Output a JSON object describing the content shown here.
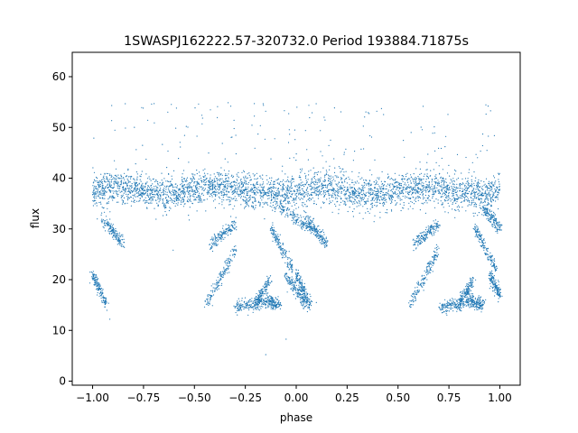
{
  "chart_data": {
    "type": "scatter",
    "title": "1SWASPJ162222.57-320732.0 Period 193884.71875s",
    "xlabel": "phase",
    "ylabel": "flux",
    "xlim": [
      -1.1,
      1.1
    ],
    "ylim": [
      -0.8,
      64.8
    ],
    "xticks": [
      -1.0,
      -0.75,
      -0.5,
      -0.25,
      0.0,
      0.25,
      0.5,
      0.75,
      1.0
    ],
    "xtick_labels": [
      "−1.00",
      "−0.75",
      "−0.50",
      "−0.25",
      "0.00",
      "0.25",
      "0.50",
      "0.75",
      "1.00"
    ],
    "yticks": [
      0,
      10,
      20,
      30,
      40,
      50,
      60
    ],
    "ytick_labels": [
      "0",
      "10",
      "20",
      "30",
      "40",
      "50",
      "60"
    ],
    "grid": false,
    "point_color": "#1f77b4",
    "marker_size_desc": "tiny dots",
    "description_components": [
      {
        "kind": "band",
        "x_range": [
          -1.0,
          1.0
        ],
        "y_center": 37.5,
        "y_spread": 3.0,
        "note": "dense main band; phase-folded and repeated over two cycles"
      },
      {
        "kind": "streak",
        "x": [
          -1.0,
          -0.93
        ],
        "y": [
          21,
          15
        ]
      },
      {
        "kind": "streak",
        "x": [
          -0.44,
          -0.3
        ],
        "y": [
          15,
          26
        ]
      },
      {
        "kind": "streak",
        "x": [
          -0.3,
          -0.15
        ],
        "y": [
          14.5,
          15.5
        ]
      },
      {
        "kind": "streak",
        "x": [
          -0.2,
          -0.13
        ],
        "y": [
          15,
          20
        ]
      },
      {
        "kind": "streak",
        "x": [
          -0.15,
          -0.08
        ],
        "y": [
          16,
          15
        ]
      },
      {
        "kind": "streak",
        "x": [
          -0.05,
          0.05
        ],
        "y": [
          21,
          15
        ]
      },
      {
        "kind": "streak",
        "x": [
          -0.12,
          -0.02
        ],
        "y": [
          30,
          22
        ]
      },
      {
        "kind": "streak",
        "x": [
          -0.42,
          -0.3
        ],
        "y": [
          27,
          31
        ]
      },
      {
        "kind": "streak",
        "x": [
          -0.95,
          -0.85
        ],
        "y": [
          32,
          27
        ]
      },
      {
        "kind": "streak",
        "x": [
          -0.08,
          0.08
        ],
        "y": [
          34,
          30
        ]
      },
      {
        "kind": "streak",
        "x": [
          0.0,
          0.07
        ],
        "y": [
          21,
          15
        ]
      },
      {
        "kind": "streak",
        "x": [
          0.56,
          0.7
        ],
        "y": [
          15,
          26
        ]
      },
      {
        "kind": "streak",
        "x": [
          0.7,
          0.85
        ],
        "y": [
          14.5,
          15.5
        ]
      },
      {
        "kind": "streak",
        "x": [
          0.8,
          0.87
        ],
        "y": [
          15,
          20
        ]
      },
      {
        "kind": "streak",
        "x": [
          0.85,
          0.92
        ],
        "y": [
          16,
          15
        ]
      },
      {
        "kind": "streak",
        "x": [
          0.95,
          1.0
        ],
        "y": [
          21,
          17
        ]
      },
      {
        "kind": "streak",
        "x": [
          0.88,
          0.98
        ],
        "y": [
          30,
          22
        ]
      },
      {
        "kind": "streak",
        "x": [
          0.58,
          0.7
        ],
        "y": [
          27,
          31
        ]
      },
      {
        "kind": "streak",
        "x": [
          0.05,
          0.15
        ],
        "y": [
          32,
          27
        ]
      },
      {
        "kind": "streak",
        "x": [
          0.92,
          1.0
        ],
        "y": [
          34,
          30
        ]
      }
    ]
  }
}
